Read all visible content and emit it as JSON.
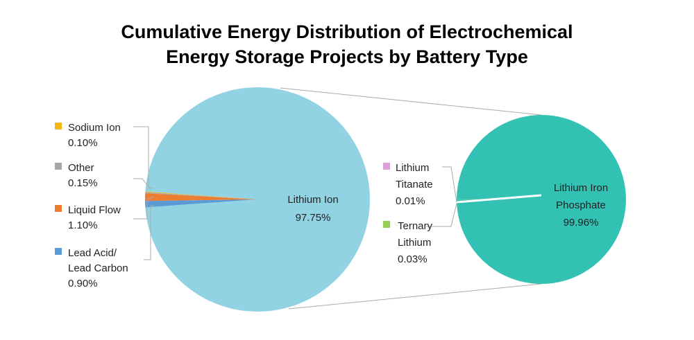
{
  "title": {
    "line1": "Cumulative Energy Distribution of Electrochemical",
    "line2": "Energy Storage Projects by Battery Type"
  },
  "chart_data": [
    {
      "type": "pie",
      "slices": [
        {
          "label": "Lithium Ion",
          "value": 97.75,
          "pct_label": "97.75%",
          "color": "#91D3E2"
        },
        {
          "label": "Sodium Ion",
          "value": 0.1,
          "pct_label": "0.10%",
          "color": "#F2B816"
        },
        {
          "label": "Other",
          "value": 0.15,
          "pct_label": "0.15%",
          "color": "#A5A5A5"
        },
        {
          "label": "Liquid Flow",
          "value": 1.1,
          "pct_label": "1.10%",
          "color": "#ED7D31"
        },
        {
          "label": "Lead Acid/ Lead Carbon",
          "label_lines": [
            "Lead Acid/",
            "Lead Carbon"
          ],
          "value": 0.9,
          "pct_label": "0.90%",
          "color": "#5B9BD5"
        }
      ]
    },
    {
      "type": "pie",
      "breakdown_of": "Lithium Ion",
      "slices": [
        {
          "label": "Lithium Iron Phosphate",
          "label_lines": [
            "Lithium Iron",
            "Phosphate"
          ],
          "value": 99.96,
          "pct_label": "99.96%",
          "color": "#33C1B4"
        },
        {
          "label": "Lithium Titanate",
          "label_lines": [
            "Lithium",
            "Titanate"
          ],
          "value": 0.01,
          "pct_label": "0.01%",
          "color": "#DDA0DD"
        },
        {
          "label": "Ternary Lithium",
          "label_lines": [
            "Ternary",
            "Lithium"
          ],
          "value": 0.03,
          "pct_label": "0.03%",
          "color": "#92D050"
        }
      ]
    }
  ]
}
